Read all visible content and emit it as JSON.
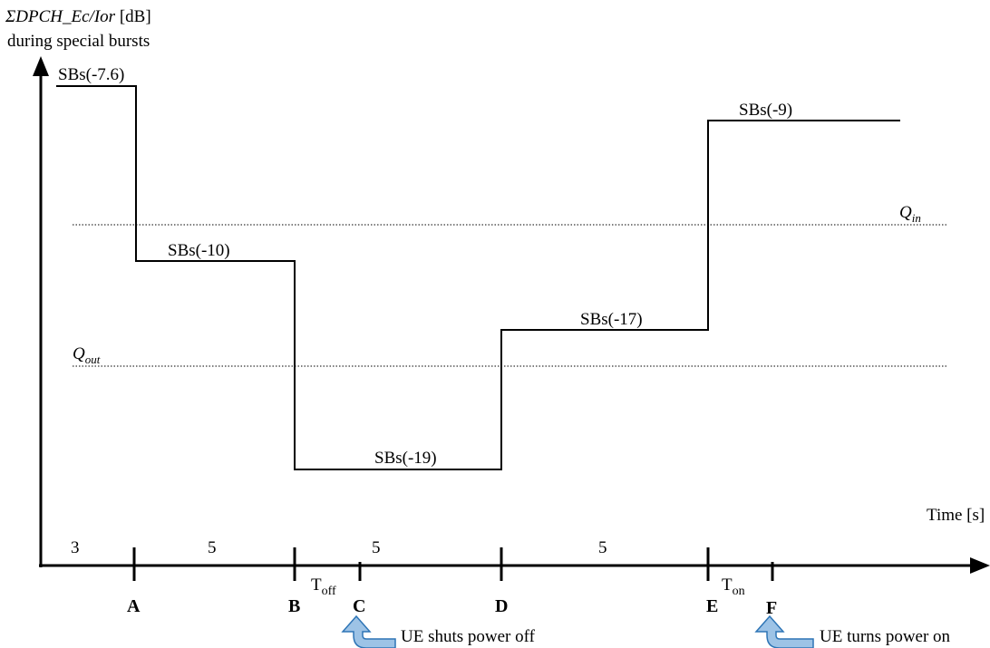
{
  "y_axis_label": {
    "quantity": "ΣDPCH_Ec/Ior",
    "unit": "[dB]",
    "subtitle": "during special bursts"
  },
  "x_axis_label": "Time [s]",
  "threshold_lines": {
    "q_in": {
      "symbol": "Q",
      "subscript": "in"
    },
    "q_out": {
      "symbol": "Q",
      "subscript": "out"
    }
  },
  "levels": [
    {
      "label": "SBs(-7.6)",
      "value_db": -7.6
    },
    {
      "label": "SBs(-10)",
      "value_db": -10
    },
    {
      "label": "SBs(-19)",
      "value_db": -19
    },
    {
      "label": "SBs(-17)",
      "value_db": -17
    },
    {
      "label": "SBs(-9)",
      "value_db": -9
    }
  ],
  "durations": [
    "3",
    "5",
    "5",
    "5"
  ],
  "points": [
    "A",
    "B",
    "C",
    "D",
    "E",
    "F"
  ],
  "delays": {
    "t_off": {
      "symbol": "T",
      "subscript": "off"
    },
    "t_on": {
      "symbol": "T",
      "subscript": "on"
    }
  },
  "events": {
    "power_off": "UE shuts power off",
    "power_on": "UE turns power on"
  },
  "colors": {
    "line": "#000000",
    "arrow_fill": "#9dc3e6",
    "arrow_stroke": "#2e75b6"
  }
}
